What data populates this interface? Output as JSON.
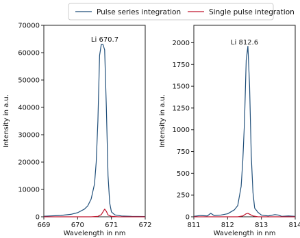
{
  "legend": {
    "placement": "top-center",
    "items": [
      {
        "label": "Pulse series integration",
        "color": "#1f4e79"
      },
      {
        "label": "Single pulse integration",
        "color": "#c0142c"
      }
    ]
  },
  "chart_data": [
    {
      "type": "line",
      "annotation": "Li 670.7",
      "xlabel": "Wavelength in nm",
      "ylabel": "Intensity in a.u.",
      "xlim": [
        669,
        672
      ],
      "ylim": [
        0,
        70000
      ],
      "xticks": [
        669,
        670,
        671,
        672
      ],
      "yticks": [
        0,
        10000,
        20000,
        30000,
        40000,
        50000,
        60000,
        70000
      ],
      "grid": false,
      "series": [
        {
          "name": "Pulse series integration",
          "color": "#1f4e79",
          "x": [
            669.0,
            669.5,
            669.8,
            670.0,
            670.2,
            670.3,
            670.4,
            670.5,
            670.55,
            670.6,
            670.65,
            670.7,
            670.75,
            670.8,
            670.85,
            670.9,
            670.95,
            671.0,
            671.1,
            671.3,
            671.6,
            672.0
          ],
          "y": [
            200,
            500,
            900,
            1500,
            2800,
            4000,
            6500,
            12000,
            20000,
            35000,
            59000,
            63000,
            63000,
            61000,
            40000,
            15000,
            5000,
            1800,
            700,
            300,
            150,
            100
          ]
        },
        {
          "name": "Single pulse integration",
          "color": "#c0142c",
          "x": [
            669.0,
            670.4,
            670.6,
            670.7,
            670.75,
            670.8,
            670.85,
            670.9,
            671.0,
            671.2,
            672.0
          ],
          "y": [
            0,
            0,
            150,
            800,
            1800,
            2800,
            2000,
            700,
            150,
            0,
            0
          ]
        }
      ]
    },
    {
      "type": "line",
      "annotation": "Li 812.6",
      "xlabel": "Wavelength in nm",
      "ylabel": "Intensity in a.u.",
      "xlim": [
        811,
        814
      ],
      "ylim": [
        0,
        2200
      ],
      "xticks": [
        811,
        812,
        813,
        814
      ],
      "yticks": [
        0,
        250,
        500,
        750,
        1000,
        1250,
        1500,
        1750,
        2000
      ],
      "grid": false,
      "series": [
        {
          "name": "Pulse series integration",
          "color": "#1f4e79",
          "x": [
            811.0,
            811.2,
            811.4,
            811.5,
            811.6,
            811.8,
            812.0,
            812.2,
            812.3,
            812.4,
            812.45,
            812.5,
            812.55,
            812.6,
            812.65,
            812.7,
            812.75,
            812.8,
            812.9,
            813.0,
            813.2,
            813.4,
            813.5,
            813.6,
            813.8,
            814.0
          ],
          "y": [
            5,
            15,
            10,
            40,
            15,
            20,
            35,
            80,
            130,
            350,
            650,
            1100,
            1800,
            1960,
            1500,
            700,
            280,
            100,
            50,
            20,
            10,
            25,
            20,
            5,
            10,
            5
          ]
        },
        {
          "name": "Single pulse integration",
          "color": "#c0142c",
          "x": [
            811.0,
            812.3,
            812.45,
            812.55,
            812.6,
            812.65,
            812.75,
            812.9,
            814.0
          ],
          "y": [
            0,
            0,
            10,
            35,
            40,
            30,
            10,
            0,
            0
          ]
        }
      ]
    }
  ]
}
